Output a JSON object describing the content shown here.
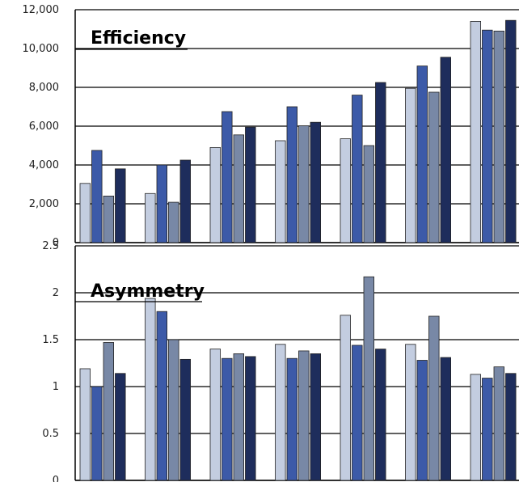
{
  "chart_data": [
    {
      "type": "bar",
      "title": "Efficiency",
      "ylim": [
        0,
        12000
      ],
      "yticks": [
        "0",
        "2,000",
        "4,000",
        "6,000",
        "8,000",
        "10,000",
        "12,000"
      ],
      "grid": true,
      "categories": [
        "",
        "",
        "",
        "",
        "",
        "",
        ""
      ],
      "series": [
        {
          "color": "#c3cde0",
          "values": [
            3050,
            2530,
            4900,
            5250,
            5350,
            7950,
            11400
          ]
        },
        {
          "color": "#3c5aa8",
          "values": [
            4750,
            4000,
            6750,
            7000,
            7600,
            9100,
            10950
          ]
        },
        {
          "color": "#7888a6",
          "values": [
            2400,
            2080,
            5550,
            6020,
            5000,
            7750,
            10900
          ]
        },
        {
          "color": "#1e2d5c",
          "values": [
            3800,
            4250,
            5950,
            6200,
            8250,
            9550,
            11450
          ]
        }
      ]
    },
    {
      "type": "bar",
      "title": "Asymmetry",
      "ylim": [
        0,
        2.5
      ],
      "yticks": [
        "0",
        "0.5",
        "1",
        "1.5",
        "2",
        "2.5"
      ],
      "grid": true,
      "categories": [
        "",
        "",
        "",
        "",
        "",
        "",
        ""
      ],
      "series": [
        {
          "color": "#c3cde0",
          "values": [
            1.19,
            1.94,
            1.4,
            1.45,
            1.76,
            1.45,
            1.13
          ]
        },
        {
          "color": "#3c5aa8",
          "values": [
            1.0,
            1.8,
            1.3,
            1.3,
            1.44,
            1.28,
            1.09
          ]
        },
        {
          "color": "#7888a6",
          "values": [
            1.47,
            1.5,
            1.35,
            1.38,
            2.17,
            1.75,
            1.21
          ]
        },
        {
          "color": "#1e2d5c",
          "values": [
            1.14,
            1.29,
            1.32,
            1.35,
            1.4,
            1.31,
            1.14
          ]
        }
      ]
    }
  ]
}
